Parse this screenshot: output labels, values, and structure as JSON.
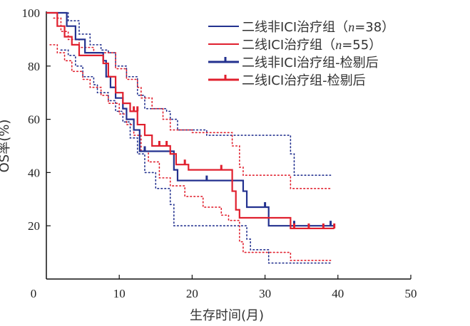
{
  "chart_data": {
    "type": "line",
    "subtype": "kaplan-meier",
    "xlabel": "生存时间(月)",
    "ylabel": "OS率(%)",
    "xlim": [
      0,
      50
    ],
    "ylim": [
      0,
      100
    ],
    "xticks": [
      "0",
      "10",
      "20",
      "30",
      "40",
      "50"
    ],
    "yticks": [
      "0",
      "20",
      "40",
      "60",
      "80",
      "100"
    ],
    "legend_position": "top-right",
    "legend": [
      {
        "label": "二线非ICI治疗组（",
        "italic": "n",
        "suffix": "=38）",
        "style": "line",
        "color": "#23318f"
      },
      {
        "label": "二线ICI治疗组（",
        "italic": "n",
        "suffix": "=55）",
        "style": "line",
        "color": "#e0202e"
      },
      {
        "label": "二线非ICI治疗组-检剔后",
        "italic": "",
        "suffix": "",
        "style": "censor",
        "color": "#23318f"
      },
      {
        "label": "二线ICI治疗组-检剔后",
        "italic": "",
        "suffix": "",
        "style": "censor",
        "color": "#e0202e"
      }
    ],
    "series": [
      {
        "name": "二线非ICI治疗组",
        "color": "#23318f",
        "steps": [
          [
            0,
            100
          ],
          [
            2.8,
            95
          ],
          [
            4,
            90
          ],
          [
            5.3,
            85
          ],
          [
            7.8,
            82
          ],
          [
            8.2,
            76
          ],
          [
            8.8,
            72
          ],
          [
            9.5,
            68
          ],
          [
            10.5,
            64
          ],
          [
            11,
            60
          ],
          [
            12,
            56
          ],
          [
            12.8,
            48
          ],
          [
            17.5,
            41
          ],
          [
            18,
            37
          ],
          [
            27,
            33
          ],
          [
            27.5,
            27
          ],
          [
            30.5,
            20
          ],
          [
            39.5,
            20
          ]
        ],
        "censors": [
          [
            13.5,
            48
          ],
          [
            22,
            37
          ],
          [
            30,
            27
          ],
          [
            34,
            20
          ],
          [
            39,
            20
          ]
        ]
      },
      {
        "name": "二线ICI治疗组",
        "color": "#e0202e",
        "steps": [
          [
            0,
            100
          ],
          [
            1.5,
            95
          ],
          [
            2.5,
            91
          ],
          [
            3.5,
            88
          ],
          [
            4.5,
            84
          ],
          [
            7.8,
            81
          ],
          [
            8.5,
            76
          ],
          [
            9.5,
            70
          ],
          [
            10.5,
            66
          ],
          [
            11.5,
            63
          ],
          [
            12.5,
            58
          ],
          [
            13.5,
            54
          ],
          [
            14.5,
            50
          ],
          [
            17,
            47
          ],
          [
            17.8,
            43
          ],
          [
            19.5,
            41
          ],
          [
            25.5,
            33
          ],
          [
            26,
            26
          ],
          [
            26.5,
            23
          ],
          [
            33.5,
            19
          ],
          [
            39.5,
            19
          ]
        ],
        "censors": [
          [
            12,
            63
          ],
          [
            12.5,
            63
          ],
          [
            15.5,
            50
          ],
          [
            16.5,
            50
          ],
          [
            19,
            43
          ],
          [
            24,
            41
          ],
          [
            34,
            19
          ],
          [
            36,
            19
          ],
          [
            38,
            19
          ],
          [
            39.5,
            19
          ]
        ]
      },
      {
        "name": "二线非ICI治疗组 95%CI上限",
        "color": "#23318f",
        "dotted": true,
        "steps": [
          [
            1.5,
            100
          ],
          [
            3,
            97
          ],
          [
            4.5,
            92
          ],
          [
            6,
            88
          ],
          [
            7.5,
            86
          ],
          [
            8.5,
            85
          ],
          [
            9.5,
            80
          ],
          [
            11,
            76
          ],
          [
            12.5,
            69
          ],
          [
            13.5,
            64
          ],
          [
            16.5,
            63
          ],
          [
            17,
            60
          ],
          [
            18,
            56
          ],
          [
            22,
            54
          ],
          [
            33,
            54
          ],
          [
            33.5,
            47
          ],
          [
            34,
            39
          ],
          [
            39,
            39
          ]
        ]
      },
      {
        "name": "二线非ICI治疗组 95%CI下限",
        "color": "#23318f",
        "dotted": true,
        "steps": [
          [
            2,
            86
          ],
          [
            3,
            84
          ],
          [
            4,
            80
          ],
          [
            5,
            76
          ],
          [
            6.5,
            73
          ],
          [
            7,
            70
          ],
          [
            8.5,
            67
          ],
          [
            9.5,
            63
          ],
          [
            10.5,
            59
          ],
          [
            11.5,
            53
          ],
          [
            12.5,
            47
          ],
          [
            13.5,
            40
          ],
          [
            15,
            34
          ],
          [
            17,
            28
          ],
          [
            17.5,
            20
          ],
          [
            27,
            20
          ],
          [
            27.5,
            15
          ],
          [
            28,
            11
          ],
          [
            30.5,
            6
          ],
          [
            39,
            6
          ]
        ]
      },
      {
        "name": "二线ICI治疗组 95%CI上限",
        "color": "#e0202e",
        "dotted": true,
        "steps": [
          [
            1,
            98
          ],
          [
            2,
            93
          ],
          [
            3,
            90
          ],
          [
            4.5,
            87
          ],
          [
            6.5,
            85
          ],
          [
            8.5,
            85
          ],
          [
            9.5,
            79
          ],
          [
            11,
            75
          ],
          [
            12.5,
            72
          ],
          [
            13,
            68
          ],
          [
            14.5,
            64
          ],
          [
            16,
            60
          ],
          [
            17,
            56
          ],
          [
            18,
            56
          ],
          [
            20,
            55
          ],
          [
            25,
            55
          ],
          [
            25.5,
            50
          ],
          [
            26.5,
            42
          ],
          [
            27,
            39
          ],
          [
            33,
            39
          ],
          [
            33.5,
            34
          ],
          [
            39,
            34
          ]
        ]
      },
      {
        "name": "二线ICI治疗组 95%CI下限",
        "color": "#e0202e",
        "dotted": true,
        "steps": [
          [
            0.5,
            88
          ],
          [
            1.5,
            85
          ],
          [
            2.5,
            82
          ],
          [
            3.5,
            78
          ],
          [
            5,
            75
          ],
          [
            6,
            72
          ],
          [
            7.5,
            69
          ],
          [
            8.5,
            66
          ],
          [
            10,
            62
          ],
          [
            11,
            58
          ],
          [
            12,
            54
          ],
          [
            13,
            48
          ],
          [
            14,
            44
          ],
          [
            15.5,
            38
          ],
          [
            17,
            35
          ],
          [
            19,
            31
          ],
          [
            21.5,
            27
          ],
          [
            24,
            24
          ],
          [
            25,
            22
          ],
          [
            26.5,
            14
          ],
          [
            27,
            10
          ],
          [
            33,
            10
          ],
          [
            33.5,
            7
          ],
          [
            39,
            7
          ]
        ]
      }
    ]
  }
}
